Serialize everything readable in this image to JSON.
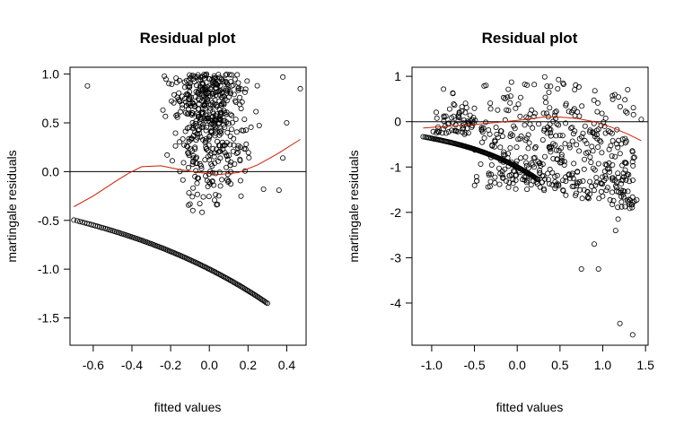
{
  "chart_data": [
    {
      "type": "scatter",
      "title": "Residual plot",
      "xlabel": "fitted values",
      "ylabel": "martingale residuals",
      "xlim": [
        -0.72,
        0.5
      ],
      "ylim": [
        -1.78,
        1.07
      ],
      "xticks": [
        -0.6,
        -0.4,
        -0.2,
        0.0,
        0.2,
        0.4
      ],
      "xtick_labels": [
        "-0.6",
        "-0.4",
        "-0.2",
        "0.0",
        "0.2",
        "0.4"
      ],
      "yticks": [
        -1.5,
        -1.0,
        -0.5,
        0.0,
        0.5,
        1.0
      ],
      "ytick_labels": [
        "-1.5",
        "-1.0",
        "-0.5",
        "0.0",
        "0.5",
        "1.0"
      ],
      "hline": 0,
      "grid": false,
      "colors": {
        "points": "#000000",
        "smooth": "#cc2200",
        "hline": "#000000"
      },
      "point_groups": [
        {
          "kind": "censored-curve",
          "x_range": [
            -0.7,
            0.3
          ],
          "curve": "y = -exp(x)",
          "count": 120
        },
        {
          "kind": "upper-cloud",
          "x_range": [
            -0.3,
            0.3
          ],
          "y_range": [
            -0.45,
            1.0
          ],
          "count": 480
        },
        {
          "kind": "individual",
          "points": [
            [
              -0.63,
              0.88
            ],
            [
              0.47,
              0.85
            ],
            [
              0.38,
              0.97
            ],
            [
              0.4,
              0.5
            ],
            [
              0.38,
              0.14
            ],
            [
              0.36,
              -0.19
            ],
            [
              0.28,
              -0.18
            ]
          ]
        }
      ],
      "smooth": {
        "x": [
          -0.7,
          -0.6,
          -0.5,
          -0.42,
          -0.35,
          -0.25,
          -0.15,
          -0.05,
          0.05,
          0.15,
          0.25,
          0.35,
          0.47
        ],
        "y": [
          -0.36,
          -0.25,
          -0.12,
          -0.02,
          0.05,
          0.06,
          0.02,
          -0.01,
          -0.03,
          -0.01,
          0.07,
          0.18,
          0.33
        ]
      }
    },
    {
      "type": "scatter",
      "title": "Residual plot",
      "xlabel": "fitted values",
      "ylabel": "martingale residuals",
      "xlim": [
        -1.23,
        1.53
      ],
      "ylim": [
        -4.93,
        1.2
      ],
      "xticks": [
        -1.0,
        -0.5,
        0.0,
        0.5,
        1.0,
        1.5
      ],
      "xtick_labels": [
        "-1.0",
        "-0.5",
        "0.0",
        "0.5",
        "1.0",
        "1.5"
      ],
      "yticks": [
        -4,
        -3,
        -2,
        -1,
        0,
        1
      ],
      "ytick_labels": [
        "-4",
        "-3",
        "-2",
        "-1",
        "0",
        "1"
      ],
      "hline": 0,
      "grid": false,
      "colors": {
        "points": "#000000",
        "smooth": "#cc2200",
        "hline": "#000000"
      },
      "point_groups": [
        {
          "kind": "censored-curve",
          "x_range": [
            -1.1,
            0.24
          ],
          "curve": "y = -exp(x)",
          "count": 120
        },
        {
          "kind": "upper-cloud",
          "x_range": [
            -1.0,
            1.4
          ],
          "y_range": [
            -1.5,
            1.0
          ],
          "count": 520
        },
        {
          "kind": "individual",
          "points": [
            [
              1.45,
              0.05
            ],
            [
              1.2,
              -4.45
            ],
            [
              1.35,
              -4.7
            ],
            [
              0.75,
              -3.25
            ],
            [
              0.95,
              -3.25
            ],
            [
              1.15,
              -2.4
            ],
            [
              1.18,
              -2.15
            ],
            [
              0.9,
              -2.7
            ]
          ]
        }
      ],
      "smooth": {
        "x": [
          -1.1,
          -0.8,
          -0.5,
          -0.2,
          0.1,
          0.3,
          0.5,
          0.7,
          0.9,
          1.1,
          1.3,
          1.45
        ],
        "y": [
          -0.14,
          -0.1,
          -0.06,
          -0.01,
          0.05,
          0.1,
          0.1,
          0.07,
          0.0,
          -0.12,
          -0.28,
          -0.42
        ]
      }
    }
  ]
}
